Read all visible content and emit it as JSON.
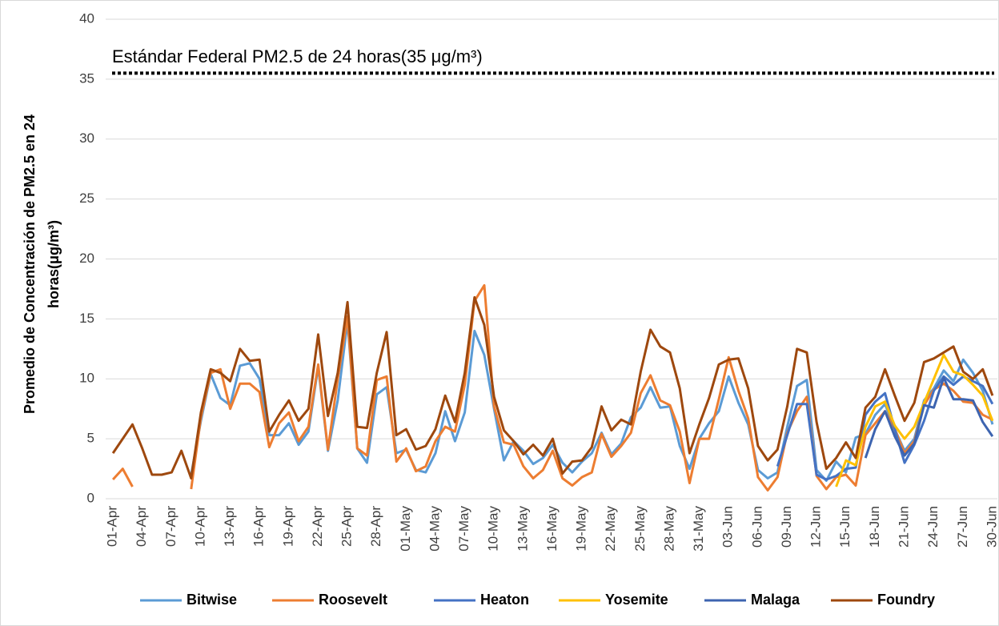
{
  "chart_data": {
    "type": "line",
    "annotation": {
      "text": "Estándar Federal PM2.5 de 24 horas(35 μg/m³)",
      "y": 35.5
    },
    "ylabel": [
      "Promedio de Concentración de PM2.5 en 24",
      "horas(μg/m³)"
    ],
    "ylim": [
      0,
      40
    ],
    "yticks": [
      0,
      5,
      10,
      15,
      20,
      25,
      30,
      35,
      40
    ],
    "grid": true,
    "legend": "bottom",
    "categories": [
      "01-Apr",
      null,
      null,
      "04-Apr",
      null,
      null,
      "07-Apr",
      null,
      null,
      "10-Apr",
      null,
      null,
      "13-Apr",
      null,
      null,
      "16-Apr",
      null,
      null,
      "19-Apr",
      null,
      null,
      "22-Apr",
      null,
      null,
      "25-Apr",
      null,
      null,
      "28-Apr",
      null,
      null,
      "01-May",
      null,
      null,
      "04-May",
      null,
      null,
      "07-May",
      null,
      null,
      "10-May",
      null,
      null,
      "13-May",
      null,
      null,
      "16-May",
      null,
      null,
      "19-May",
      null,
      null,
      "22-May",
      null,
      null,
      "25-May",
      null,
      null,
      "28-May",
      null,
      null,
      "31-May",
      null,
      null,
      "03-Jun",
      null,
      null,
      "06-Jun",
      null,
      null,
      "09-Jun",
      null,
      null,
      "12-Jun",
      null,
      null,
      "15-Jun",
      null,
      null,
      "18-Jun",
      null,
      null,
      "21-Jun",
      null,
      null,
      "24-Jun",
      null,
      null,
      "27-Jun",
      null,
      null,
      "30-Jun"
    ],
    "series": [
      {
        "name": "Bitwise",
        "color": "#5b9bd5",
        "values": [
          null,
          null,
          null,
          null,
          null,
          null,
          null,
          null,
          2,
          6.5,
          10.4,
          8.4,
          7.8,
          11.1,
          11.3,
          10,
          5.3,
          5.3,
          6.3,
          4.5,
          5.6,
          11,
          4,
          8.2,
          14.8,
          4.2,
          3,
          8.7,
          9.3,
          3.8,
          4.1,
          2.4,
          2.2,
          3.8,
          7.3,
          4.8,
          7.2,
          14,
          12,
          7.5,
          3.2,
          4.8,
          4,
          2.9,
          3.4,
          4.5,
          3,
          2.2,
          3.1,
          3.8,
          5.5,
          3.7,
          4.6,
          6.8,
          7.6,
          9.3,
          7.6,
          7.7,
          4.4,
          2.5,
          5,
          6.3,
          7.3,
          10.2,
          8,
          6.2,
          2.4,
          1.7,
          2.2,
          6,
          9.4,
          9.9,
          2.4,
          1.5,
          3.1,
          2.2,
          5.1,
          5.4,
          7,
          7.9,
          5.8,
          4,
          5,
          8.2,
          9.2,
          10.7,
          9.8,
          11.6,
          10.5,
          9,
          6.2
        ]
      },
      {
        "name": "Roosevelt",
        "color": "#ed7d31",
        "values": [
          1.6,
          2.5,
          1,
          null,
          null,
          null,
          null,
          null,
          0.8,
          6.8,
          10.5,
          10.8,
          7.5,
          9.6,
          9.6,
          8.9,
          4.3,
          6.3,
          7.2,
          4.8,
          6,
          11.2,
          4.1,
          10,
          15.2,
          4.2,
          3.6,
          9.9,
          10.2,
          3.1,
          4.2,
          2.3,
          2.7,
          4.8,
          6,
          5.6,
          9.5,
          16.5,
          17.8,
          7.7,
          4.7,
          4.5,
          2.7,
          1.7,
          2.4,
          4,
          1.7,
          1.1,
          1.8,
          2.2,
          5.4,
          3.5,
          4.4,
          5.5,
          8.8,
          10.3,
          8.2,
          7.8,
          5.6,
          1.3,
          5,
          5,
          8.3,
          11.8,
          9,
          6.7,
          1.8,
          0.7,
          1.8,
          5.5,
          7.3,
          8.5,
          1.9,
          0.8,
          1.8,
          2,
          1.1,
          5.3,
          6.3,
          7.3,
          5.8,
          3.8,
          4.8,
          7.8,
          9.1,
          9.6,
          9,
          8.1,
          8,
          7,
          6.6
        ]
      },
      {
        "name": "Heaton",
        "color": "#4472c4",
        "values": [
          null,
          null,
          null,
          null,
          null,
          null,
          null,
          null,
          null,
          null,
          null,
          null,
          null,
          null,
          null,
          null,
          null,
          null,
          null,
          null,
          null,
          null,
          null,
          null,
          null,
          null,
          null,
          null,
          null,
          null,
          null,
          null,
          null,
          null,
          null,
          null,
          null,
          null,
          null,
          null,
          null,
          null,
          null,
          null,
          null,
          null,
          null,
          null,
          null,
          null,
          null,
          null,
          null,
          null,
          null,
          null,
          null,
          null,
          null,
          null,
          null,
          null,
          null,
          null,
          null,
          null,
          null,
          null,
          2.7,
          5.3,
          7.9,
          7.9,
          2,
          1.6,
          1.9,
          2.5,
          2.6,
          7,
          8.1,
          8.8,
          5.8,
          3,
          4.5,
          6.5,
          9,
          10.2,
          9.5,
          10.2,
          9.8,
          9.4,
          7.9
        ]
      },
      {
        "name": "Yosemite",
        "color": "#ffc000",
        "values": [
          null,
          null,
          null,
          null,
          null,
          null,
          null,
          null,
          null,
          null,
          null,
          null,
          null,
          null,
          null,
          null,
          null,
          null,
          null,
          null,
          null,
          null,
          null,
          null,
          null,
          null,
          null,
          null,
          null,
          null,
          null,
          null,
          null,
          null,
          null,
          null,
          null,
          null,
          null,
          null,
          null,
          null,
          null,
          null,
          null,
          null,
          null,
          null,
          null,
          null,
          null,
          null,
          null,
          null,
          null,
          null,
          null,
          null,
          null,
          null,
          null,
          null,
          null,
          null,
          null,
          null,
          null,
          null,
          null,
          null,
          null,
          null,
          null,
          null,
          1,
          3.2,
          2.8,
          6,
          7.7,
          8.1,
          6.1,
          5,
          6,
          8,
          10,
          12,
          10.6,
          10.3,
          9.5,
          8.6,
          6.5
        ]
      },
      {
        "name": "Malaga",
        "color": "#3d64b0",
        "values": [
          null,
          null,
          null,
          null,
          null,
          null,
          null,
          null,
          null,
          null,
          null,
          null,
          null,
          null,
          null,
          null,
          null,
          null,
          null,
          null,
          null,
          null,
          null,
          null,
          null,
          null,
          null,
          null,
          null,
          null,
          null,
          null,
          null,
          null,
          null,
          null,
          null,
          null,
          null,
          null,
          null,
          null,
          null,
          null,
          null,
          null,
          null,
          null,
          null,
          null,
          null,
          null,
          null,
          null,
          null,
          null,
          null,
          null,
          null,
          null,
          null,
          null,
          null,
          null,
          null,
          null,
          null,
          null,
          null,
          null,
          null,
          null,
          null,
          null,
          null,
          null,
          null,
          3.4,
          5.8,
          7.3,
          5.2,
          3.6,
          4.6,
          7.8,
          7.6,
          10.1,
          8.3,
          8.3,
          8.2,
          6.4,
          5.2
        ]
      },
      {
        "name": "Foundry",
        "color": "#9e480e",
        "values": [
          3.8,
          5,
          6.2,
          4.2,
          2,
          2,
          2.2,
          4,
          1.7,
          7.2,
          10.8,
          10.5,
          9.8,
          12.5,
          11.5,
          11.6,
          5.6,
          7,
          8.2,
          6.5,
          7.5,
          13.7,
          6.9,
          10.5,
          16.4,
          6,
          5.9,
          10.5,
          13.9,
          5.3,
          5.8,
          4.1,
          4.4,
          5.8,
          8.6,
          6.4,
          10.5,
          16.8,
          14.5,
          8.5,
          5.7,
          4.8,
          3.7,
          4.5,
          3.6,
          5,
          2.1,
          3.1,
          3.2,
          4.3,
          7.7,
          5.7,
          6.6,
          6.2,
          10.6,
          14.1,
          12.7,
          12.2,
          9.2,
          3.8,
          6.2,
          8.4,
          11.2,
          11.6,
          11.7,
          9.2,
          4.4,
          3.2,
          4.1,
          7.7,
          12.5,
          12.2,
          6.4,
          2.5,
          3.4,
          4.7,
          3.4,
          7.6,
          8.5,
          10.8,
          8.6,
          6.5,
          8,
          11.4,
          11.7,
          12.2,
          12.7,
          10.6,
          10,
          10.8,
          8.6
        ]
      }
    ]
  }
}
